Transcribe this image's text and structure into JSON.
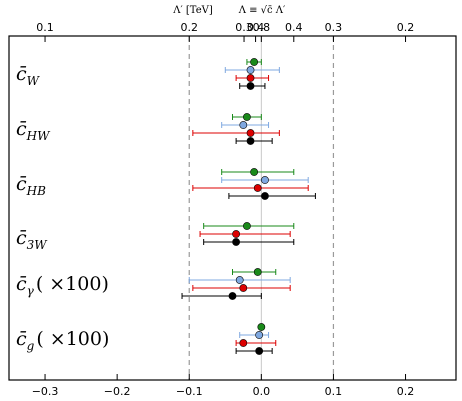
{
  "chart_data": {
    "type": "scatter",
    "subtype": "forest-plot-with-error-bars",
    "bottom_axis": {
      "xlim": [
        -0.35,
        0.27
      ],
      "ticks": [
        -0.3,
        -0.2,
        -0.1,
        0.0,
        0.1,
        0.2
      ],
      "tick_labels": [
        "−0.3",
        "−0.2",
        "−0.1",
        "0.0",
        "0.1",
        "0.2"
      ]
    },
    "top_axis": {
      "label_left": "Λ′ [TeV]",
      "label_right": "Λ ≡ √c̄ Λ′",
      "tick_labels": [
        "0.1",
        "0.2",
        "0.3",
        "0.4",
        "0.8",
        "0.4",
        "0.3",
        "0.2"
      ],
      "tick_positions_data": [
        -0.3,
        -0.1,
        -0.024,
        -0.008,
        0.0,
        0.045,
        0.1,
        0.2
      ]
    },
    "reference_lines_x": [
      -0.1,
      0.1
    ],
    "grid": false,
    "coefficients": [
      {
        "label_main": "c̄",
        "label_sub": "W",
        "label_suffix": "",
        "points": [
          {
            "color": "#1a8a1a",
            "x": -0.01,
            "lo": -0.02,
            "hi": 0.0
          },
          {
            "color": "#7fa8e0",
            "x": -0.015,
            "lo": -0.05,
            "hi": 0.025
          },
          {
            "color": "#dd0000",
            "x": -0.015,
            "lo": -0.035,
            "hi": 0.01
          },
          {
            "color": "#000000",
            "x": -0.015,
            "lo": -0.03,
            "hi": 0.005
          }
        ]
      },
      {
        "label_main": "c̄",
        "label_sub": "HW",
        "label_suffix": "",
        "points": [
          {
            "color": "#1a8a1a",
            "x": -0.02,
            "lo": -0.04,
            "hi": 0.0
          },
          {
            "color": "#7fa8e0",
            "x": -0.025,
            "lo": -0.055,
            "hi": 0.01
          },
          {
            "color": "#dd0000",
            "x": -0.015,
            "lo": -0.095,
            "hi": 0.025
          },
          {
            "color": "#000000",
            "x": -0.015,
            "lo": -0.035,
            "hi": 0.015
          }
        ]
      },
      {
        "label_main": "c̄",
        "label_sub": "HB",
        "label_suffix": "",
        "points": [
          {
            "color": "#1a8a1a",
            "x": -0.01,
            "lo": -0.055,
            "hi": 0.045
          },
          {
            "color": "#7fa8e0",
            "x": 0.005,
            "lo": -0.055,
            "hi": 0.065
          },
          {
            "color": "#dd0000",
            "x": -0.005,
            "lo": -0.095,
            "hi": 0.065
          },
          {
            "color": "#000000",
            "x": 0.005,
            "lo": -0.045,
            "hi": 0.075
          }
        ]
      },
      {
        "label_main": "c̄",
        "label_sub": "3W",
        "label_suffix": "",
        "points": [
          {
            "color": "#1a8a1a",
            "x": -0.02,
            "lo": -0.08,
            "hi": 0.045
          },
          {
            "color": "#dd0000",
            "x": -0.035,
            "lo": -0.085,
            "hi": 0.04
          },
          {
            "color": "#000000",
            "x": -0.035,
            "lo": -0.08,
            "hi": 0.045
          }
        ]
      },
      {
        "label_main": "c̄",
        "label_sub": "γ",
        "label_suffix": "( ×100)",
        "points": [
          {
            "color": "#1a8a1a",
            "x": -0.005,
            "lo": -0.04,
            "hi": 0.02
          },
          {
            "color": "#7fa8e0",
            "x": -0.03,
            "lo": -0.1,
            "hi": 0.04
          },
          {
            "color": "#dd0000",
            "x": -0.025,
            "lo": -0.095,
            "hi": 0.04
          },
          {
            "color": "#000000",
            "x": -0.04,
            "lo": -0.11,
            "hi": 0.0
          }
        ]
      },
      {
        "label_main": "c̄",
        "label_sub": "g",
        "label_suffix": "( ×100)",
        "points": [
          {
            "color": "#1a8a1a",
            "x": 0.0,
            "lo": -0.002,
            "hi": 0.002
          },
          {
            "color": "#7fa8e0",
            "x": -0.003,
            "lo": -0.03,
            "hi": 0.01
          },
          {
            "color": "#dd0000",
            "x": -0.025,
            "lo": -0.035,
            "hi": 0.02
          },
          {
            "color": "#000000",
            "x": -0.003,
            "lo": -0.035,
            "hi": 0.015
          }
        ]
      }
    ]
  }
}
